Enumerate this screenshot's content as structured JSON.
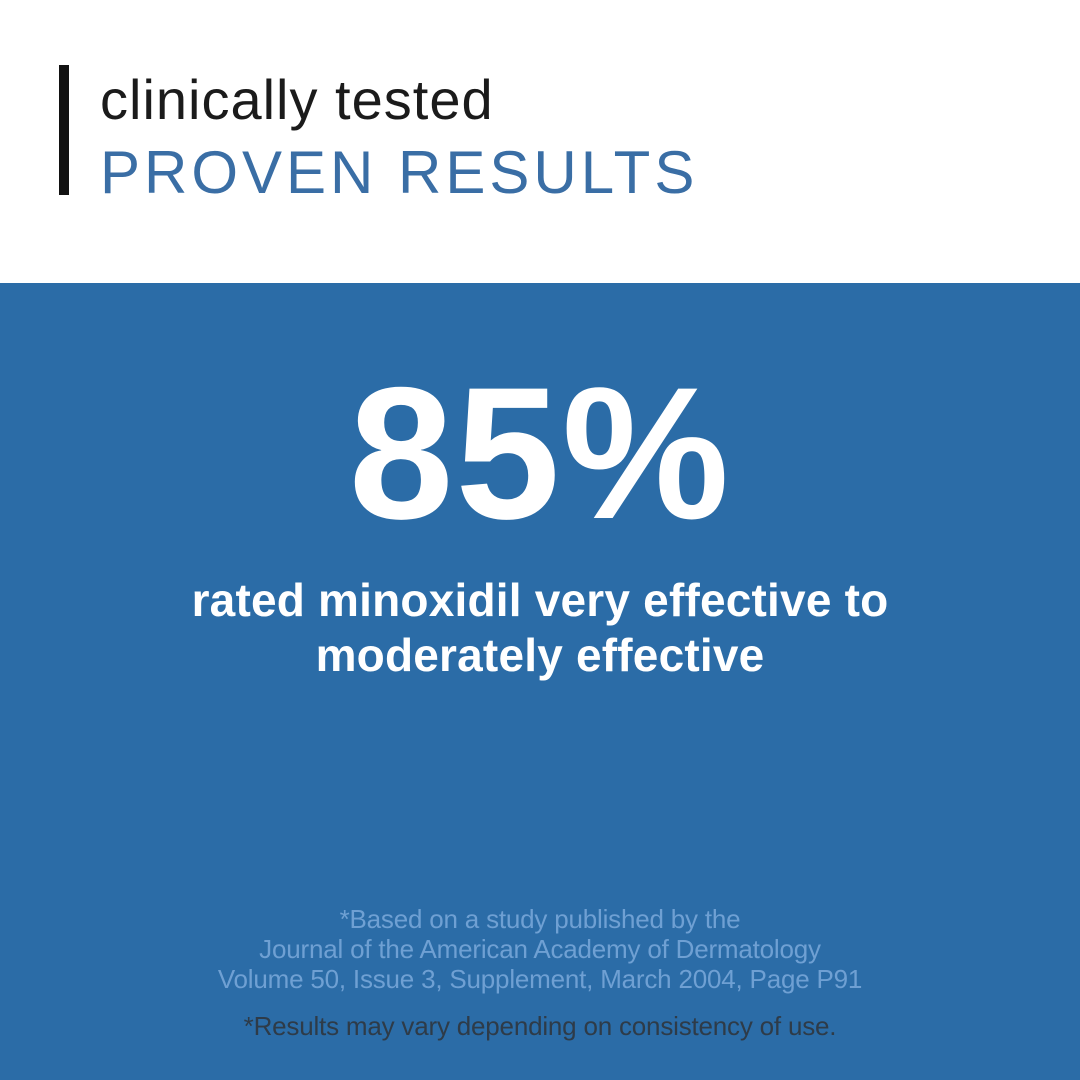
{
  "header": {
    "eyebrow": "clinically tested",
    "headline": "PROVEN RESULTS"
  },
  "hero": {
    "stat_value": "85%",
    "stat_description_line1": "rated minoxidil very effective to",
    "stat_description_line2": "moderately effective",
    "citation_line1": "*Based on a study published by the",
    "citation_line2": "Journal of the American Academy of Dermatology",
    "citation_line3": "Volume 50, Issue 3, Supplement, March 2004, Page P91",
    "disclaimer": "*Results may vary depending on consistency of use."
  },
  "colors": {
    "background_blue": "#2B6CA7",
    "headline_blue": "#3A6EA5",
    "citation_blue": "#6FA0D3",
    "disclaimer_dark": "#2E3B48",
    "accent_bar_black": "#121212",
    "eyebrow_black": "#1B1B1B",
    "stat_white": "#FFFFFF",
    "frame_gray": "#D8D8D8"
  }
}
